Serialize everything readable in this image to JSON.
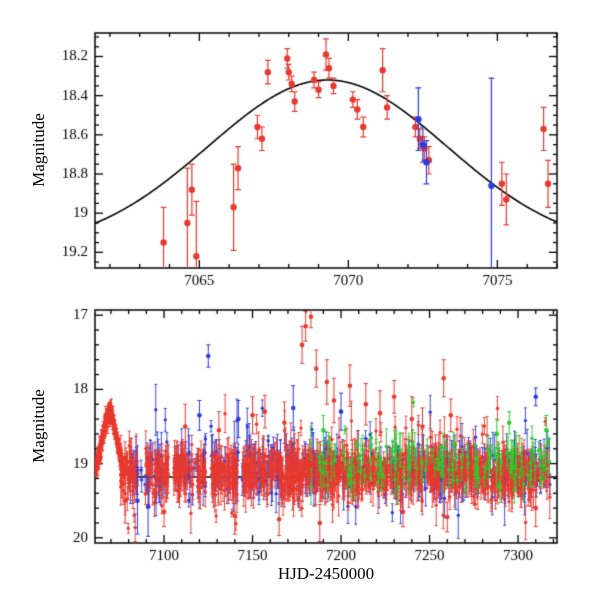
{
  "figure": {
    "background": "#ffffff",
    "axis_color": "#000000",
    "colors": {
      "red": "#e8392e",
      "blue": "#2b3cdc",
      "green": "#2ecc2e",
      "curve": "#000000"
    }
  },
  "chart_data": [
    {
      "type": "scatter",
      "name": "event-zoom-panel",
      "title": "",
      "xlabel": "",
      "ylabel": "Magnitude",
      "xlim": [
        7061.5,
        7077.0
      ],
      "ylim": [
        18.08,
        19.28
      ],
      "y_inverted": true,
      "grid": false,
      "xticks": [
        7065,
        7070,
        7075
      ],
      "yticks": [
        18.2,
        18.4,
        18.6,
        18.8,
        19,
        19.2
      ],
      "x_minor_step": 1,
      "y_minor_step": 0.05,
      "point_radius": 3.2,
      "model_curve": {
        "t0": 7069.3,
        "peak_mag": 18.32,
        "baseline": 19.18,
        "sigma": 4.0
      },
      "series": [
        {
          "name": "survey-red",
          "color": "red",
          "points": [
            [
              7063.8,
              19.15,
              0.18
            ],
            [
              7064.6,
              19.05,
              0.28
            ],
            [
              7064.75,
              18.88,
              0.13
            ],
            [
              7064.9,
              19.22,
              0.28
            ],
            [
              7066.15,
              18.97,
              0.22
            ],
            [
              7066.3,
              18.77,
              0.11
            ],
            [
              7066.95,
              18.56,
              0.06
            ],
            [
              7067.1,
              18.62,
              0.06
            ],
            [
              7067.3,
              18.28,
              0.06
            ],
            [
              7067.95,
              18.21,
              0.05
            ],
            [
              7068.0,
              18.28,
              0.04
            ],
            [
              7068.1,
              18.34,
              0.04
            ],
            [
              7068.2,
              18.43,
              0.05
            ],
            [
              7068.85,
              18.32,
              0.04
            ],
            [
              7069.0,
              18.37,
              0.04
            ],
            [
              7069.25,
              18.19,
              0.08
            ],
            [
              7069.35,
              18.26,
              0.05
            ],
            [
              7069.5,
              18.35,
              0.04
            ],
            [
              7070.15,
              18.42,
              0.04
            ],
            [
              7070.3,
              18.47,
              0.05
            ],
            [
              7070.5,
              18.56,
              0.05
            ],
            [
              7071.15,
              18.27,
              0.11
            ],
            [
              7071.3,
              18.46,
              0.06
            ],
            [
              7072.25,
              18.56,
              0.05
            ],
            [
              7072.4,
              18.62,
              0.05
            ],
            [
              7072.55,
              18.67,
              0.06
            ],
            [
              7072.7,
              18.73,
              0.07
            ],
            [
              7075.15,
              18.85,
              0.11
            ],
            [
              7075.3,
              18.93,
              0.13
            ],
            [
              7076.55,
              18.57,
              0.11
            ],
            [
              7076.7,
              18.85,
              0.12
            ]
          ]
        },
        {
          "name": "followup-blue",
          "color": "blue",
          "points": [
            [
              7072.35,
              18.52,
              0.16
            ],
            [
              7072.5,
              18.65,
              0.09
            ],
            [
              7072.62,
              18.74,
              0.11
            ],
            [
              7074.8,
              18.86,
              0.55
            ]
          ]
        }
      ]
    },
    {
      "type": "scatter",
      "name": "full-season-panel",
      "title": "",
      "xlabel": "HJD-2450000",
      "ylabel": "Magnitude",
      "xlim": [
        7061,
        7322
      ],
      "ylim": [
        16.93,
        20.07
      ],
      "y_inverted": true,
      "grid": false,
      "xticks": [
        7100,
        7150,
        7200,
        7250,
        7300
      ],
      "yticks": [
        17,
        18,
        19,
        20
      ],
      "x_minor_step": 10,
      "y_minor_step": 0.2,
      "point_radius": 1.7,
      "outlier_radius": 2.3,
      "model_curve": {
        "t0": 7069.3,
        "peak_mag": 18.32,
        "baseline": 19.18,
        "sigma": 4.0
      },
      "clusters": [
        {
          "name": "baseline-blue",
          "color": "blue",
          "x_start": 7080,
          "x_end": 7318,
          "n": 420,
          "night_jitter": 0.5,
          "mean": 19.08,
          "sigma": 0.16,
          "err_min": 0.06,
          "err_max": 0.35,
          "bright_frac": 0.05,
          "bright_amp": 0.7,
          "faint_frac": 0.04,
          "faint_amp": 0.5,
          "seed": 31,
          "gaps": [
            [
              7103,
              7105
            ],
            [
              7124,
              7126
            ]
          ]
        },
        {
          "name": "baseline-red",
          "color": "red",
          "x_start": 7076,
          "x_end": 7318,
          "n": 1100,
          "night_jitter": 0.5,
          "mean": 19.13,
          "sigma": 0.13,
          "err_min": 0.05,
          "err_max": 0.3,
          "bright_frac": 0.045,
          "bright_amp": 0.75,
          "faint_frac": 0.03,
          "faint_amp": 0.55,
          "seed": 21,
          "gaps": [
            [
              7086,
              7089
            ],
            [
              7103,
              7105
            ],
            [
              7124,
              7126
            ],
            [
              7143,
              7144
            ]
          ]
        },
        {
          "name": "event-rise-red",
          "color": "red",
          "follow_curve": true,
          "x_start": 7062,
          "x_end": 7077,
          "n": 220,
          "night_jitter": 0.45,
          "sigma": 0.05,
          "err_min": 0.04,
          "err_max": 0.12,
          "seed": 11
        },
        {
          "name": "baseline-green",
          "color": "green",
          "x_start": 7183,
          "x_end": 7319,
          "n": 150,
          "night_jitter": 0.5,
          "mean": 19.0,
          "sigma": 0.16,
          "err_min": 0.05,
          "err_max": 0.25,
          "bright_frac": 0.06,
          "bright_amp": 0.55,
          "faint_frac": 0.03,
          "faint_amp": 0.4,
          "seed": 41
        }
      ],
      "outliers": [
        {
          "name": "red-flare-points",
          "color": "red",
          "points": [
            [
              7112,
              18.5,
              0.3
            ],
            [
              7131,
              18.55,
              0.25
            ],
            [
              7150,
              18.35,
              0.25
            ],
            [
              7157,
              18.3,
              0.22
            ],
            [
              7168,
              18.45,
              0.28
            ],
            [
              7178,
              17.4,
              0.25
            ],
            [
              7180,
              17.15,
              0.2
            ],
            [
              7183,
              17.02,
              0.15
            ],
            [
              7186,
              17.72,
              0.25
            ],
            [
              7192,
              17.9,
              0.3
            ],
            [
              7196,
              18.15,
              0.3
            ],
            [
              7205,
              17.95,
              0.28
            ],
            [
              7214,
              18.2,
              0.28
            ],
            [
              7222,
              18.32,
              0.3
            ],
            [
              7230,
              18.1,
              0.22
            ],
            [
              7240,
              18.4,
              0.3
            ],
            [
              7246,
              18.5,
              0.25
            ],
            [
              7258,
              17.85,
              0.25
            ],
            [
              7262,
              18.35,
              0.22
            ],
            [
              7078,
              19.5,
              0.3
            ],
            [
              7100,
              19.65,
              0.2
            ],
            [
              7140,
              19.7,
              0.25
            ],
            [
              7165,
              19.75,
              0.22
            ],
            [
              7188,
              19.8,
              0.25
            ],
            [
              7235,
              19.65,
              0.2
            ],
            [
              7260,
              19.72,
              0.2
            ],
            [
              7310,
              19.6,
              0.25
            ]
          ]
        },
        {
          "name": "blue-outlier-points",
          "color": "blue",
          "points": [
            [
              7085,
              19.5,
              0.45
            ],
            [
              7091,
              19.58,
              0.4
            ],
            [
              7120,
              18.35,
              0.2
            ],
            [
              7125,
              17.55,
              0.15
            ],
            [
              7142,
              18.4,
              0.25
            ],
            [
              7173,
              18.25,
              0.3
            ],
            [
              7200,
              18.3,
              0.25
            ],
            [
              7310,
              18.1,
              0.12
            ]
          ]
        },
        {
          "name": "green-outlier-points",
          "color": "green",
          "points": [
            [
              7190,
              18.55,
              0.2
            ],
            [
              7288,
              18.6,
              0.2
            ],
            [
              7295,
              18.45,
              0.15
            ],
            [
              7316,
              18.55,
              0.2
            ]
          ]
        }
      ]
    }
  ]
}
